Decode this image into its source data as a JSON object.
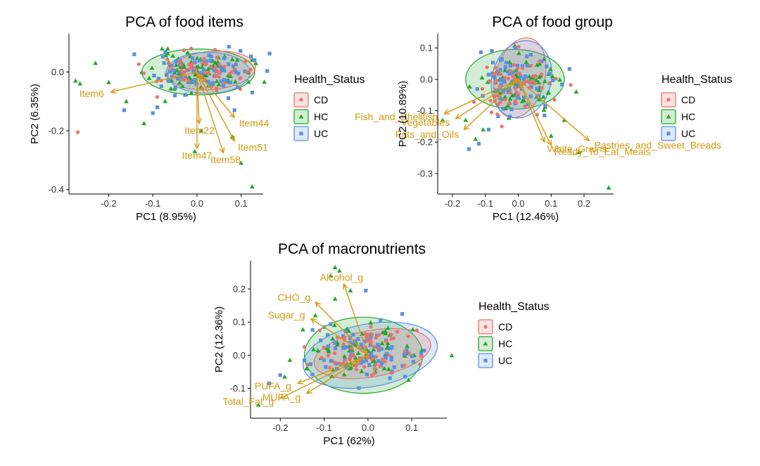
{
  "colors": {
    "CD": "#e8736b",
    "HC": "#22a62a",
    "UC": "#5b8fe0",
    "loading": "#d39b10",
    "axis": "#000000",
    "tick_text": "#333333"
  },
  "legend": {
    "title": "Health_Status",
    "items": [
      {
        "key": "CD",
        "label": "CD",
        "symbol": "circle"
      },
      {
        "key": "HC",
        "label": "HC",
        "symbol": "triangle"
      },
      {
        "key": "UC",
        "label": "UC",
        "symbol": "square"
      }
    ]
  },
  "chart_data": [
    {
      "type": "scatter",
      "title": "PCA of food items",
      "xlabel": "PC1 (8.95%)",
      "ylabel": "PC2 (6.35%)",
      "xlim": [
        -0.29,
        0.15
      ],
      "ylim": [
        -0.415,
        0.13
      ],
      "xticks": [
        -0.2,
        -0.1,
        0.0,
        0.1
      ],
      "xtick_labels": [
        "-0.2",
        "-0.1",
        "0.0",
        "0.1"
      ],
      "yticks": [
        -0.4,
        -0.2,
        0.0
      ],
      "ytick_labels": [
        "-0.4",
        "-0.2",
        "0.0"
      ],
      "ellipses": [
        {
          "group": "HC",
          "cx": 0.003,
          "cy": 0.0,
          "rx": 0.128,
          "ry": 0.078,
          "angle": 0
        },
        {
          "group": "CD",
          "cx": 0.033,
          "cy": 0.005,
          "rx": 0.1,
          "ry": 0.065,
          "angle": -5
        },
        {
          "group": "UC",
          "cx": 0.025,
          "cy": -0.003,
          "rx": 0.095,
          "ry": 0.07,
          "angle": 0
        }
      ],
      "loadings": [
        {
          "label": "Item6",
          "x": -0.195,
          "y": -0.068
        },
        {
          "label": "Item22",
          "x": 0.005,
          "y": -0.175
        },
        {
          "label": "Item44",
          "x": 0.085,
          "y": -0.155
        },
        {
          "label": "Item51",
          "x": 0.085,
          "y": -0.235
        },
        {
          "label": "Item47",
          "x": 0.0,
          "y": -0.26
        },
        {
          "label": "Item58",
          "x": 0.06,
          "y": -0.275
        }
      ],
      "outliers": [
        {
          "group": "HC",
          "x": -0.275,
          "y": -0.03
        },
        {
          "group": "HC",
          "x": -0.265,
          "y": -0.04
        },
        {
          "group": "HC",
          "x": -0.23,
          "y": 0.03
        },
        {
          "group": "HC",
          "x": -0.2,
          "y": -0.035
        },
        {
          "group": "HC",
          "x": -0.16,
          "y": -0.1
        },
        {
          "group": "HC",
          "x": -0.12,
          "y": -0.175
        },
        {
          "group": "HC",
          "x": -0.005,
          "y": -0.27
        },
        {
          "group": "HC",
          "x": 0.01,
          "y": -0.2
        },
        {
          "group": "HC",
          "x": 0.1,
          "y": -0.31
        },
        {
          "group": "HC",
          "x": 0.125,
          "y": -0.39
        },
        {
          "group": "HC",
          "x": 0.08,
          "y": -0.22
        },
        {
          "group": "CD",
          "x": -0.27,
          "y": -0.205
        },
        {
          "group": "CD",
          "x": -0.09,
          "y": -0.085
        },
        {
          "group": "UC",
          "x": -0.165,
          "y": -0.13
        },
        {
          "group": "UC",
          "x": -0.1,
          "y": -0.14
        },
        {
          "group": "UC",
          "x": -0.09,
          "y": -0.12
        },
        {
          "group": "UC",
          "x": 0.085,
          "y": -0.13
        },
        {
          "group": "UC",
          "x": -0.05,
          "y": -0.08
        }
      ],
      "cluster": {
        "cx": 0.005,
        "cy": 0.0,
        "sx": 0.055,
        "sy": 0.035,
        "counts": {
          "HC": 85,
          "CD": 60,
          "UC": 75
        },
        "seed": 11
      }
    },
    {
      "type": "scatter",
      "title": "PCA of food group",
      "xlabel": "PC1 (12.46%)",
      "ylabel": "PC2 (10.89%)",
      "xlim": [
        -0.245,
        0.29
      ],
      "ylim": [
        -0.365,
        0.145
      ],
      "xticks": [
        -0.2,
        -0.1,
        0.0,
        0.1,
        0.2
      ],
      "xtick_labels": [
        "-0.2",
        "-0.1",
        "0.0",
        "0.1",
        "0.2"
      ],
      "yticks": [
        -0.3,
        -0.2,
        -0.1,
        0.0,
        0.1
      ],
      "ytick_labels": [
        "-0.3",
        "-0.2",
        "-0.1",
        "0.0",
        "0.1"
      ],
      "ellipses": [
        {
          "group": "HC",
          "cx": -0.01,
          "cy": 0.0,
          "rx": 0.15,
          "ry": 0.095,
          "angle": 0
        },
        {
          "group": "CD",
          "cx": 0.005,
          "cy": 0.005,
          "rx": 0.075,
          "ry": 0.13,
          "angle": 15
        },
        {
          "group": "UC",
          "cx": 0.01,
          "cy": 0.0,
          "rx": 0.09,
          "ry": 0.125,
          "angle": 15
        }
      ],
      "loadings": [
        {
          "label": "Fish_and_Shellfish",
          "x": -0.225,
          "y": -0.11
        },
        {
          "label": "Vegetables",
          "x": -0.19,
          "y": -0.125
        },
        {
          "label": "Pastries_and_Sweet_Breads",
          "x": 0.215,
          "y": -0.195
        },
        {
          "label": "Fats_and_Oils",
          "x": -0.165,
          "y": -0.16
        },
        {
          "label": "Ready_To_Eat_Meals",
          "x": 0.1,
          "y": -0.21
        },
        {
          "label": "White_Grains",
          "x": 0.08,
          "y": -0.2
        }
      ],
      "outliers": [
        {
          "group": "HC",
          "x": 0.275,
          "y": -0.345
        },
        {
          "group": "HC",
          "x": 0.185,
          "y": -0.232
        },
        {
          "group": "HC",
          "x": -0.23,
          "y": -0.13
        },
        {
          "group": "HC",
          "x": -0.16,
          "y": -0.13
        },
        {
          "group": "HC",
          "x": -0.13,
          "y": -0.19
        },
        {
          "group": "HC",
          "x": 0.1,
          "y": -0.18
        },
        {
          "group": "HC",
          "x": 0.14,
          "y": -0.13
        },
        {
          "group": "UC",
          "x": -0.15,
          "y": -0.222
        },
        {
          "group": "UC",
          "x": -0.12,
          "y": -0.205
        },
        {
          "group": "UC",
          "x": -0.09,
          "y": -0.16
        },
        {
          "group": "CD",
          "x": -0.05,
          "y": -0.15
        }
      ],
      "cluster": {
        "cx": 0.0,
        "cy": -0.01,
        "sx": 0.06,
        "sy": 0.045,
        "counts": {
          "HC": 80,
          "CD": 60,
          "UC": 75
        },
        "seed": 29
      }
    },
    {
      "type": "scatter",
      "title": "PCA of macronutrients",
      "xlabel": "PC1 (62%)",
      "ylabel": "PC2 (12.36%)",
      "xlim": [
        -0.268,
        0.18
      ],
      "ylim": [
        -0.19,
        0.285
      ],
      "xticks": [
        -0.2,
        -0.1,
        0.0,
        0.1
      ],
      "xtick_labels": [
        "-0.2",
        "-0.1",
        "0.0",
        "0.1"
      ],
      "yticks": [
        -0.1,
        0.0,
        0.1,
        0.2
      ],
      "ytick_labels": [
        "-0.1",
        "0.0",
        "0.1",
        "0.2"
      ],
      "ellipses": [
        {
          "group": "HC",
          "cx": -0.01,
          "cy": 0.0,
          "rx": 0.135,
          "ry": 0.115,
          "angle": 0
        },
        {
          "group": "UC",
          "cx": 0.005,
          "cy": 0.0,
          "rx": 0.155,
          "ry": 0.095,
          "angle": -10
        },
        {
          "group": "CD",
          "cx": 0.01,
          "cy": 0.005,
          "rx": 0.135,
          "ry": 0.07,
          "angle": -10
        }
      ],
      "loadings": [
        {
          "label": "Alcohol_g",
          "x": -0.055,
          "y": 0.215
        },
        {
          "label": "CHO_g",
          "x": -0.12,
          "y": 0.16
        },
        {
          "label": "Sugar_g",
          "x": -0.13,
          "y": 0.11
        },
        {
          "label": "PUFA_g",
          "x": -0.16,
          "y": -0.085
        },
        {
          "label": "Total_Fat_g",
          "x": -0.2,
          "y": -0.13
        },
        {
          "label": "MUFA_g",
          "x": -0.14,
          "y": -0.115
        }
      ],
      "outliers": [
        {
          "group": "HC",
          "x": -0.075,
          "y": 0.265
        },
        {
          "group": "HC",
          "x": -0.065,
          "y": 0.255
        },
        {
          "group": "HC",
          "x": -0.085,
          "y": 0.24
        },
        {
          "group": "HC",
          "x": -0.04,
          "y": 0.195
        },
        {
          "group": "HC",
          "x": -0.075,
          "y": 0.17
        },
        {
          "group": "HC",
          "x": -0.12,
          "y": 0.12
        },
        {
          "group": "HC",
          "x": -0.25,
          "y": -0.15
        },
        {
          "group": "HC",
          "x": -0.19,
          "y": -0.065
        },
        {
          "group": "HC",
          "x": -0.14,
          "y": -0.04
        },
        {
          "group": "UC",
          "x": -0.005,
          "y": 0.195
        },
        {
          "group": "UC",
          "x": -0.225,
          "y": -0.085
        },
        {
          "group": "UC",
          "x": -0.2,
          "y": -0.06
        },
        {
          "group": "UC",
          "x": -0.145,
          "y": -0.015
        },
        {
          "group": "CD",
          "x": -0.145,
          "y": 0.025
        },
        {
          "group": "CD",
          "x": -0.11,
          "y": 0.075
        }
      ],
      "cluster": {
        "cx": 0.0,
        "cy": 0.005,
        "sx": 0.06,
        "sy": 0.04,
        "counts": {
          "HC": 80,
          "CD": 65,
          "UC": 80
        },
        "seed": 47
      }
    }
  ]
}
